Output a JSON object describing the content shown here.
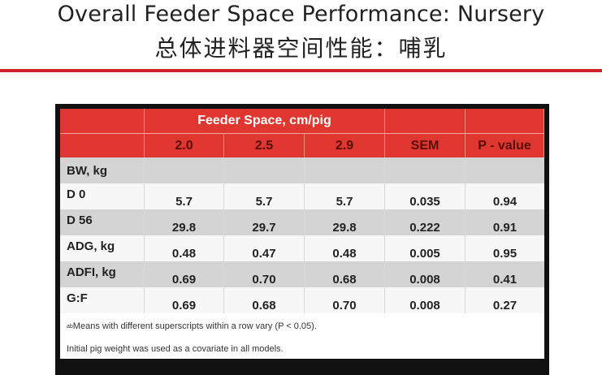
{
  "title": {
    "english": "Overall Feeder Space Performance: Nursery",
    "chinese": "总体进料器空间性能：哺乳"
  },
  "table": {
    "group_header": "Feeder Space, cm/pig",
    "columns": [
      "2.0",
      "2.5",
      "2.9",
      "SEM",
      "P - value"
    ],
    "rows": [
      {
        "label": "BW, kg",
        "values": [
          "",
          "",
          "",
          "",
          ""
        ]
      },
      {
        "label": "D 0",
        "values": [
          "5.7",
          "5.7",
          "5.7",
          "0.035",
          "0.94"
        ]
      },
      {
        "label": "D 56",
        "values": [
          "29.8",
          "29.7",
          "29.8",
          "0.222",
          "0.91"
        ]
      },
      {
        "label": "ADG, kg",
        "values": [
          "0.48",
          "0.47",
          "0.48",
          "0.005",
          "0.95"
        ]
      },
      {
        "label": "ADFI, kg",
        "values": [
          "0.69",
          "0.70",
          "0.68",
          "0.008",
          "0.41"
        ]
      },
      {
        "label": "G:F",
        "values": [
          "0.69",
          "0.68",
          "0.70",
          "0.008",
          "0.27"
        ]
      }
    ],
    "footnote_sup": "ab",
    "footnote_1": "Means with different superscripts within a row vary (P < 0.05).",
    "footnote_2": "Initial pig weight was used as a covariate in all models."
  },
  "colors": {
    "accent_red": "#d0202a",
    "header_red": "#e03630",
    "row_grey": "#d4d4d4",
    "row_light": "#f7f7f7"
  }
}
